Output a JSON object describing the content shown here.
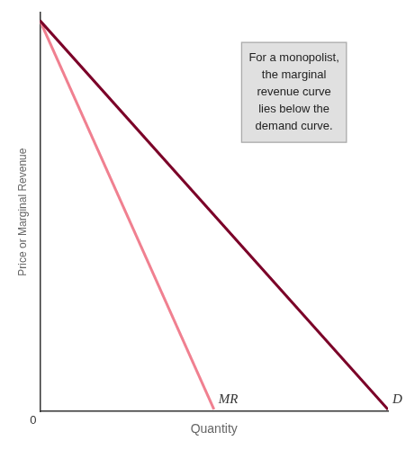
{
  "chart_data": {
    "type": "line",
    "x_label": "Quantity",
    "y_label": "Price or Marginal Revenue",
    "xlim": [
      0,
      10
    ],
    "ylim": [
      0,
      10
    ],
    "tick_labels": false,
    "grid": false,
    "legend": false,
    "series": [
      {
        "name": "D",
        "color": "#7B0028",
        "x": [
          0,
          10
        ],
        "values": [
          9.8,
          0.05
        ]
      },
      {
        "name": "MR",
        "color": "#F08090",
        "x": [
          0,
          5.0
        ],
        "values": [
          9.8,
          0.05
        ]
      }
    ],
    "annotations": [
      "0",
      "For a monopolist,\nthe marginal\nrevenue curve\nlies below the\ndemand curve."
    ]
  }
}
